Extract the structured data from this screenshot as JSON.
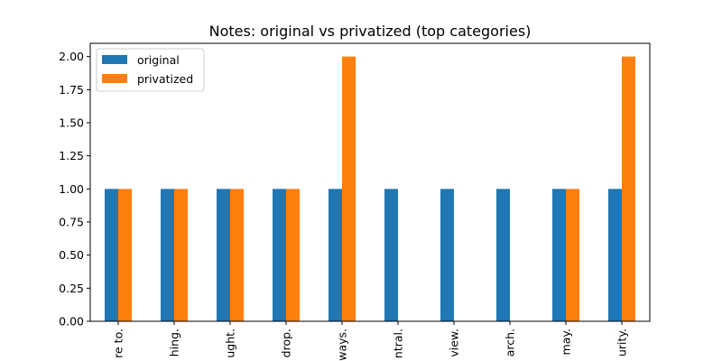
{
  "chart_data": {
    "type": "bar",
    "title": "Notes: original vs privatized (top categories)",
    "xlabel": "",
    "ylabel": "",
    "categories": [
      "re to.",
      "hing.",
      "ught.",
      "drop.",
      "ways.",
      "ntral.",
      "view.",
      "arch.",
      "may.",
      "urity."
    ],
    "series": [
      {
        "name": "original",
        "color": "#1f77b4",
        "values": [
          1,
          1,
          1,
          1,
          1,
          1,
          1,
          1,
          1,
          1
        ]
      },
      {
        "name": "privatized",
        "color": "#ff7f0e",
        "values": [
          1,
          1,
          1,
          1,
          2,
          0,
          0,
          0,
          1,
          2
        ]
      }
    ],
    "ylim": [
      0,
      2.1
    ],
    "yticks": [
      "0.00",
      "0.25",
      "0.50",
      "0.75",
      "1.00",
      "1.25",
      "1.50",
      "1.75",
      "2.00"
    ],
    "grid": false,
    "legend_position": "top-left"
  }
}
